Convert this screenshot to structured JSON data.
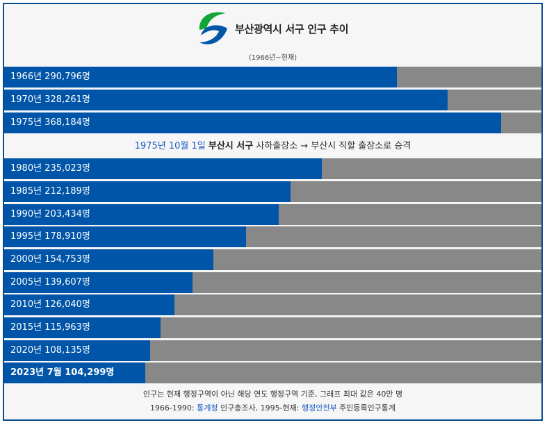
{
  "header": {
    "title": "부산광역시 서구 인구 추이",
    "subtitle": "(1966년~현재)",
    "logo_colors": {
      "green": "#13a538",
      "blue": "#0056a7"
    }
  },
  "note": {
    "date": "1975년 10월 1일",
    "place": "부산시 서구",
    "text": "사하출장소 → 부산시 직할 출장소로 승격"
  },
  "chart_data": {
    "type": "bar",
    "orientation": "horizontal",
    "title": "부산광역시 서구 인구 추이",
    "xmax": 400000,
    "unit": "명",
    "categories": [
      "1966년",
      "1970년",
      "1975년",
      "1980년",
      "1985년",
      "1990년",
      "1995년",
      "2000년",
      "2005년",
      "2010년",
      "2015년",
      "2020년",
      "2023년 7월"
    ],
    "values": [
      290796,
      328261,
      368184,
      235023,
      212189,
      203434,
      178910,
      154753,
      139607,
      126040,
      115963,
      108135,
      104299
    ],
    "labels": [
      "1966년 290,796명",
      "1970년 328,261명",
      "1975년 368,184명",
      "1980년 235,023명",
      "1985년 212,189명",
      "1990년 203,434명",
      "1995년 178,910명",
      "2000년 154,753명",
      "2005년 139,607명",
      "2010년 126,040명",
      "2015년 115,963명",
      "2020년 108,135명",
      "2023년 7월 104,299명"
    ],
    "highlight_last": true,
    "colors": {
      "fill": "#0055a8",
      "remainder": "#888888"
    }
  },
  "footer": {
    "line1": "인구는 현재 행정구역이 아닌 해당 연도 행정구역 기준, 그래프 최대 값은 40만 명",
    "line2_prefix": "1966-1990: ",
    "line2_link1": "통계청",
    "line2_mid": " 인구총조사, 1995-현재: ",
    "line2_link2": "행정안전부",
    "line2_suffix": " 주민등록인구통계"
  }
}
